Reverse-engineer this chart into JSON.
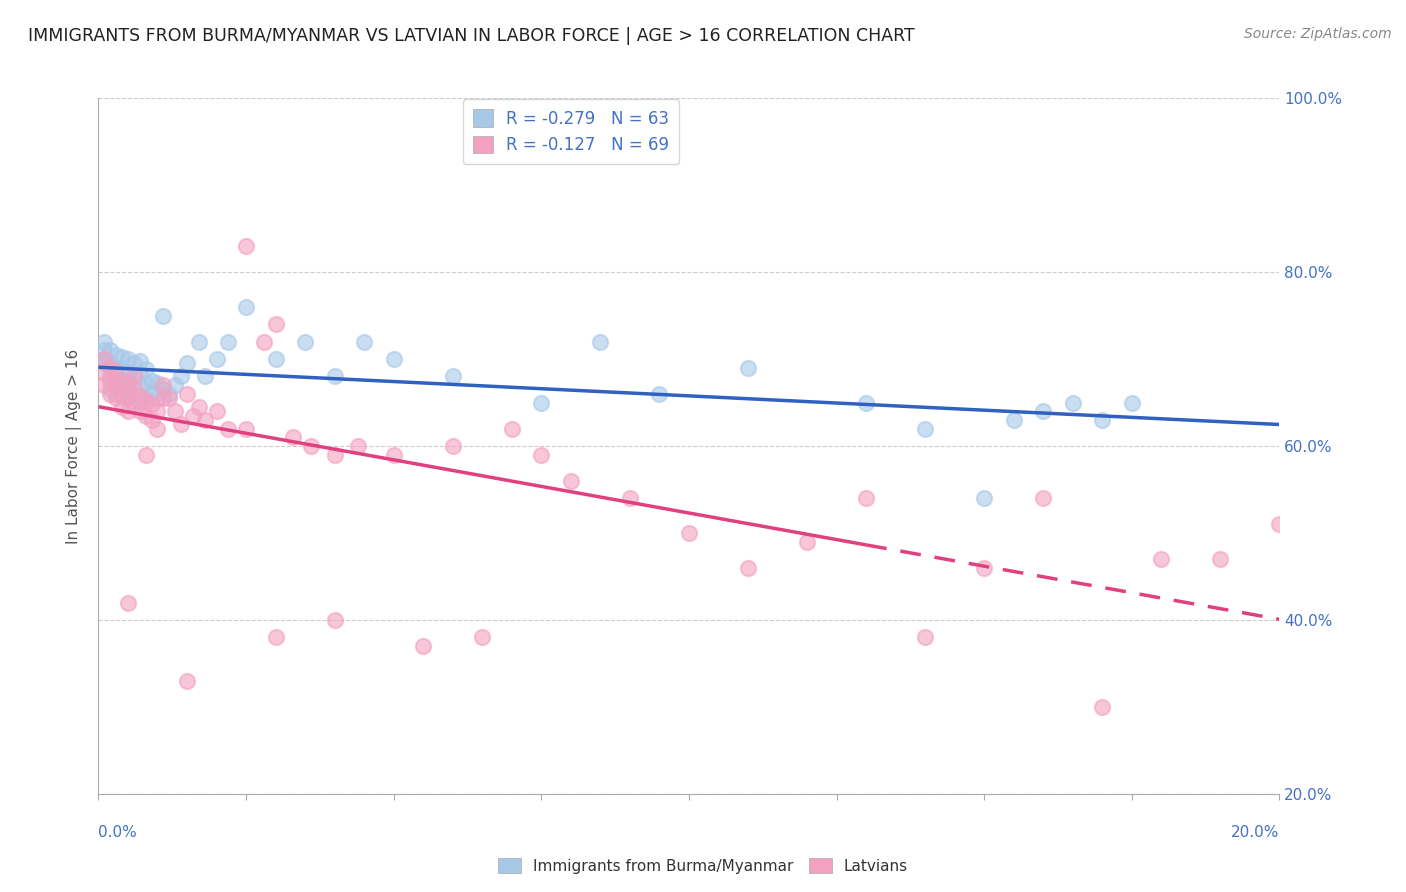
{
  "title": "IMMIGRANTS FROM BURMA/MYANMAR VS LATVIAN IN LABOR FORCE | AGE > 16 CORRELATION CHART",
  "source": "Source: ZipAtlas.com",
  "ylabel": "In Labor Force | Age > 16",
  "series": [
    {
      "label": "Immigrants from Burma/Myanmar",
      "color": "#a8c8e8",
      "R": -0.279,
      "N": 63,
      "trend_color": "#3060c0",
      "trend_solid": true
    },
    {
      "label": "Latvians",
      "color": "#f4a0c0",
      "R": -0.127,
      "N": 69,
      "trend_color": "#e04080",
      "trend_solid": false
    }
  ],
  "xlim": [
    0.0,
    0.2
  ],
  "ylim": [
    0.2,
    1.0
  ],
  "yticks": [
    0.2,
    0.4,
    0.6,
    0.8,
    1.0
  ],
  "ytick_labels": [
    "20.0%",
    "40.0%",
    "60.0%",
    "80.0%",
    "100.0%"
  ],
  "blue_scatter_x": [
    0.001,
    0.001,
    0.001,
    0.001,
    0.002,
    0.002,
    0.002,
    0.002,
    0.003,
    0.003,
    0.003,
    0.003,
    0.004,
    0.004,
    0.004,
    0.004,
    0.005,
    0.005,
    0.005,
    0.005,
    0.006,
    0.006,
    0.006,
    0.007,
    0.007,
    0.007,
    0.007,
    0.008,
    0.008,
    0.008,
    0.009,
    0.009,
    0.01,
    0.01,
    0.011,
    0.011,
    0.012,
    0.013,
    0.014,
    0.015,
    0.017,
    0.018,
    0.02,
    0.022,
    0.025,
    0.03,
    0.035,
    0.04,
    0.045,
    0.05,
    0.06,
    0.075,
    0.085,
    0.095,
    0.11,
    0.13,
    0.15,
    0.16,
    0.17,
    0.175,
    0.14,
    0.155,
    0.165
  ],
  "blue_scatter_y": [
    0.695,
    0.7,
    0.71,
    0.72,
    0.665,
    0.68,
    0.695,
    0.71,
    0.66,
    0.675,
    0.69,
    0.705,
    0.658,
    0.672,
    0.688,
    0.702,
    0.655,
    0.67,
    0.685,
    0.7,
    0.66,
    0.68,
    0.695,
    0.652,
    0.668,
    0.682,
    0.698,
    0.655,
    0.672,
    0.688,
    0.66,
    0.675,
    0.655,
    0.672,
    0.665,
    0.75,
    0.66,
    0.67,
    0.68,
    0.695,
    0.72,
    0.68,
    0.7,
    0.72,
    0.76,
    0.7,
    0.72,
    0.68,
    0.72,
    0.7,
    0.68,
    0.65,
    0.72,
    0.66,
    0.69,
    0.65,
    0.54,
    0.64,
    0.63,
    0.65,
    0.62,
    0.63,
    0.65
  ],
  "pink_scatter_x": [
    0.001,
    0.001,
    0.001,
    0.002,
    0.002,
    0.002,
    0.003,
    0.003,
    0.003,
    0.004,
    0.004,
    0.004,
    0.005,
    0.005,
    0.005,
    0.006,
    0.006,
    0.006,
    0.007,
    0.007,
    0.008,
    0.008,
    0.009,
    0.009,
    0.01,
    0.01,
    0.011,
    0.011,
    0.012,
    0.013,
    0.014,
    0.015,
    0.016,
    0.017,
    0.018,
    0.02,
    0.022,
    0.025,
    0.028,
    0.03,
    0.033,
    0.036,
    0.04,
    0.044,
    0.05,
    0.055,
    0.06,
    0.065,
    0.07,
    0.075,
    0.08,
    0.09,
    0.1,
    0.11,
    0.12,
    0.13,
    0.14,
    0.15,
    0.16,
    0.17,
    0.18,
    0.19,
    0.2,
    0.03,
    0.04,
    0.025,
    0.015,
    0.008,
    0.005
  ],
  "pink_scatter_y": [
    0.67,
    0.685,
    0.7,
    0.66,
    0.675,
    0.69,
    0.655,
    0.67,
    0.685,
    0.645,
    0.66,
    0.675,
    0.64,
    0.658,
    0.672,
    0.648,
    0.665,
    0.68,
    0.64,
    0.658,
    0.635,
    0.652,
    0.63,
    0.648,
    0.62,
    0.64,
    0.655,
    0.67,
    0.655,
    0.64,
    0.625,
    0.66,
    0.635,
    0.645,
    0.63,
    0.64,
    0.62,
    0.62,
    0.72,
    0.74,
    0.61,
    0.6,
    0.59,
    0.6,
    0.59,
    0.37,
    0.6,
    0.38,
    0.62,
    0.59,
    0.56,
    0.54,
    0.5,
    0.46,
    0.49,
    0.54,
    0.38,
    0.46,
    0.54,
    0.3,
    0.47,
    0.47,
    0.51,
    0.38,
    0.4,
    0.83,
    0.33,
    0.59,
    0.42
  ],
  "background_color": "#ffffff",
  "grid_color": "#cccccc",
  "title_color": "#222222",
  "tick_label_color": "#4472c4"
}
